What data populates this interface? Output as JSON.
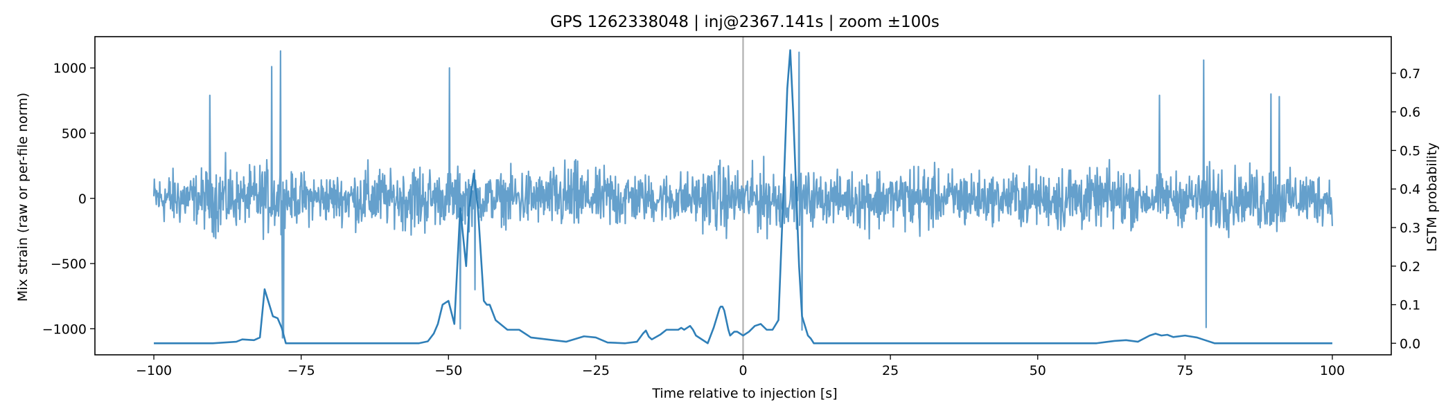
{
  "chart_data": {
    "type": "line",
    "title": "GPS 1262338048 | inj@2367.141s | zoom ±100s",
    "xlabel": "Time relative to injection [s]",
    "ylabel_left": "Mix strain (raw or per-file norm)",
    "ylabel_right": "LSTM probability",
    "xlim": [
      -110,
      110
    ],
    "ylim_left": [
      -1200,
      1240
    ],
    "ylim_right": [
      -0.03,
      0.795
    ],
    "x_ticks": [
      -100,
      -75,
      -50,
      -25,
      0,
      25,
      50,
      75,
      100
    ],
    "x_tick_labels": [
      "−100",
      "−75",
      "−50",
      "−25",
      "0",
      "25",
      "50",
      "75",
      "100"
    ],
    "y_left_ticks": [
      -1000,
      -500,
      0,
      500,
      1000
    ],
    "y_left_tick_labels": [
      "−1000",
      "−500",
      "0",
      "500",
      "1000"
    ],
    "y_right_ticks": [
      0.0,
      0.1,
      0.2,
      0.3,
      0.4,
      0.5,
      0.6,
      0.7
    ],
    "y_right_tick_labels": [
      "0.0",
      "0.1",
      "0.2",
      "0.3",
      "0.4",
      "0.5",
      "0.6",
      "0.7"
    ],
    "vline_x": 0,
    "colors": {
      "strain": "#65a0cc",
      "probability": "#2f7fb8",
      "vline": "#b8b8b8"
    },
    "series": [
      {
        "axis": "left",
        "style": "noise",
        "x_range": [
          -100,
          100
        ],
        "typical_amplitude": 300,
        "spikes": [
          {
            "x": -90.5,
            "y": 790
          },
          {
            "x": -80.0,
            "y": 1010
          },
          {
            "x": -78.5,
            "y": 1130
          },
          {
            "x": -78.2,
            "y": -1070
          },
          {
            "x": -78.0,
            "y": -1060
          },
          {
            "x": -49.8,
            "y": 1000
          },
          {
            "x": -48.0,
            "y": -1000
          },
          {
            "x": -45.5,
            "y": -700
          },
          {
            "x": 9.5,
            "y": 1120
          },
          {
            "x": 10.0,
            "y": -1010
          },
          {
            "x": 70.7,
            "y": 790
          },
          {
            "x": 78.2,
            "y": 1060
          },
          {
            "x": 78.6,
            "y": -990
          },
          {
            "x": 89.6,
            "y": 800
          },
          {
            "x": 91.0,
            "y": 780
          }
        ]
      },
      {
        "axis": "right",
        "style": "line",
        "x": [
          -100,
          -90,
          -86,
          -85,
          -83,
          -82,
          -81.2,
          -80.6,
          -79.8,
          -79.0,
          -78.3,
          -77.6,
          -76,
          -70,
          -60,
          -55,
          -53.5,
          -52.5,
          -51.8,
          -51.0,
          -50.0,
          -49.0,
          -48.0,
          -47.0,
          -46.5,
          -45.7,
          -45.0,
          -44.5,
          -44.0,
          -43.5,
          -43.0,
          -42.0,
          -40.0,
          -38.0,
          -36.0,
          -30,
          -27,
          -25,
          -23,
          -20,
          -18,
          -17.0,
          -16.5,
          -16.0,
          -15.5,
          -14.0,
          -13.0,
          -12.0,
          -11.0,
          -10.5,
          -10.0,
          -9.5,
          -9.0,
          -8.5,
          -8.0,
          -6.5,
          -6.0,
          -5.0,
          -4.0,
          -3.8,
          -3.5,
          -3.2,
          -2.5,
          -2.2,
          -1.5,
          -1.0,
          0.0,
          1.0,
          2.0,
          3.0,
          4.0,
          5.0,
          6.0,
          7.0,
          7.5,
          8.0,
          8.5,
          9.0,
          9.5,
          10.0,
          10.5,
          11.0,
          11.5,
          12.0,
          12.5,
          13.0,
          15,
          20,
          40,
          60,
          61.5,
          63.0,
          65.0,
          67.0,
          69.0,
          70.0,
          71.0,
          72.0,
          73.0,
          75.0,
          77.0,
          78.0,
          80.0,
          90.0,
          100
        ],
        "y": [
          0.0,
          0.0,
          0.004,
          0.01,
          0.008,
          0.015,
          0.14,
          0.11,
          0.07,
          0.065,
          0.04,
          0.0,
          0.0,
          0.0,
          0.0,
          0.0,
          0.005,
          0.025,
          0.05,
          0.1,
          0.11,
          0.05,
          0.35,
          0.2,
          0.35,
          0.44,
          0.35,
          0.23,
          0.11,
          0.1,
          0.1,
          0.06,
          0.035,
          0.035,
          0.015,
          0.004,
          0.018,
          0.015,
          0.002,
          0.0,
          0.004,
          0.025,
          0.033,
          0.017,
          0.01,
          0.023,
          0.035,
          0.035,
          0.035,
          0.04,
          0.035,
          0.04,
          0.045,
          0.035,
          0.02,
          0.005,
          0.0,
          0.04,
          0.09,
          0.095,
          0.095,
          0.085,
          0.035,
          0.02,
          0.03,
          0.03,
          0.02,
          0.03,
          0.045,
          0.05,
          0.035,
          0.035,
          0.06,
          0.45,
          0.66,
          0.76,
          0.6,
          0.4,
          0.2,
          0.07,
          0.045,
          0.02,
          0.012,
          0.0,
          0.0,
          0.0,
          0.0,
          0.0,
          0.0,
          0.0,
          0.003,
          0.006,
          0.008,
          0.004,
          0.02,
          0.025,
          0.02,
          0.022,
          0.016,
          0.02,
          0.015,
          0.01,
          0.0,
          0.0,
          0.0
        ]
      }
    ]
  }
}
